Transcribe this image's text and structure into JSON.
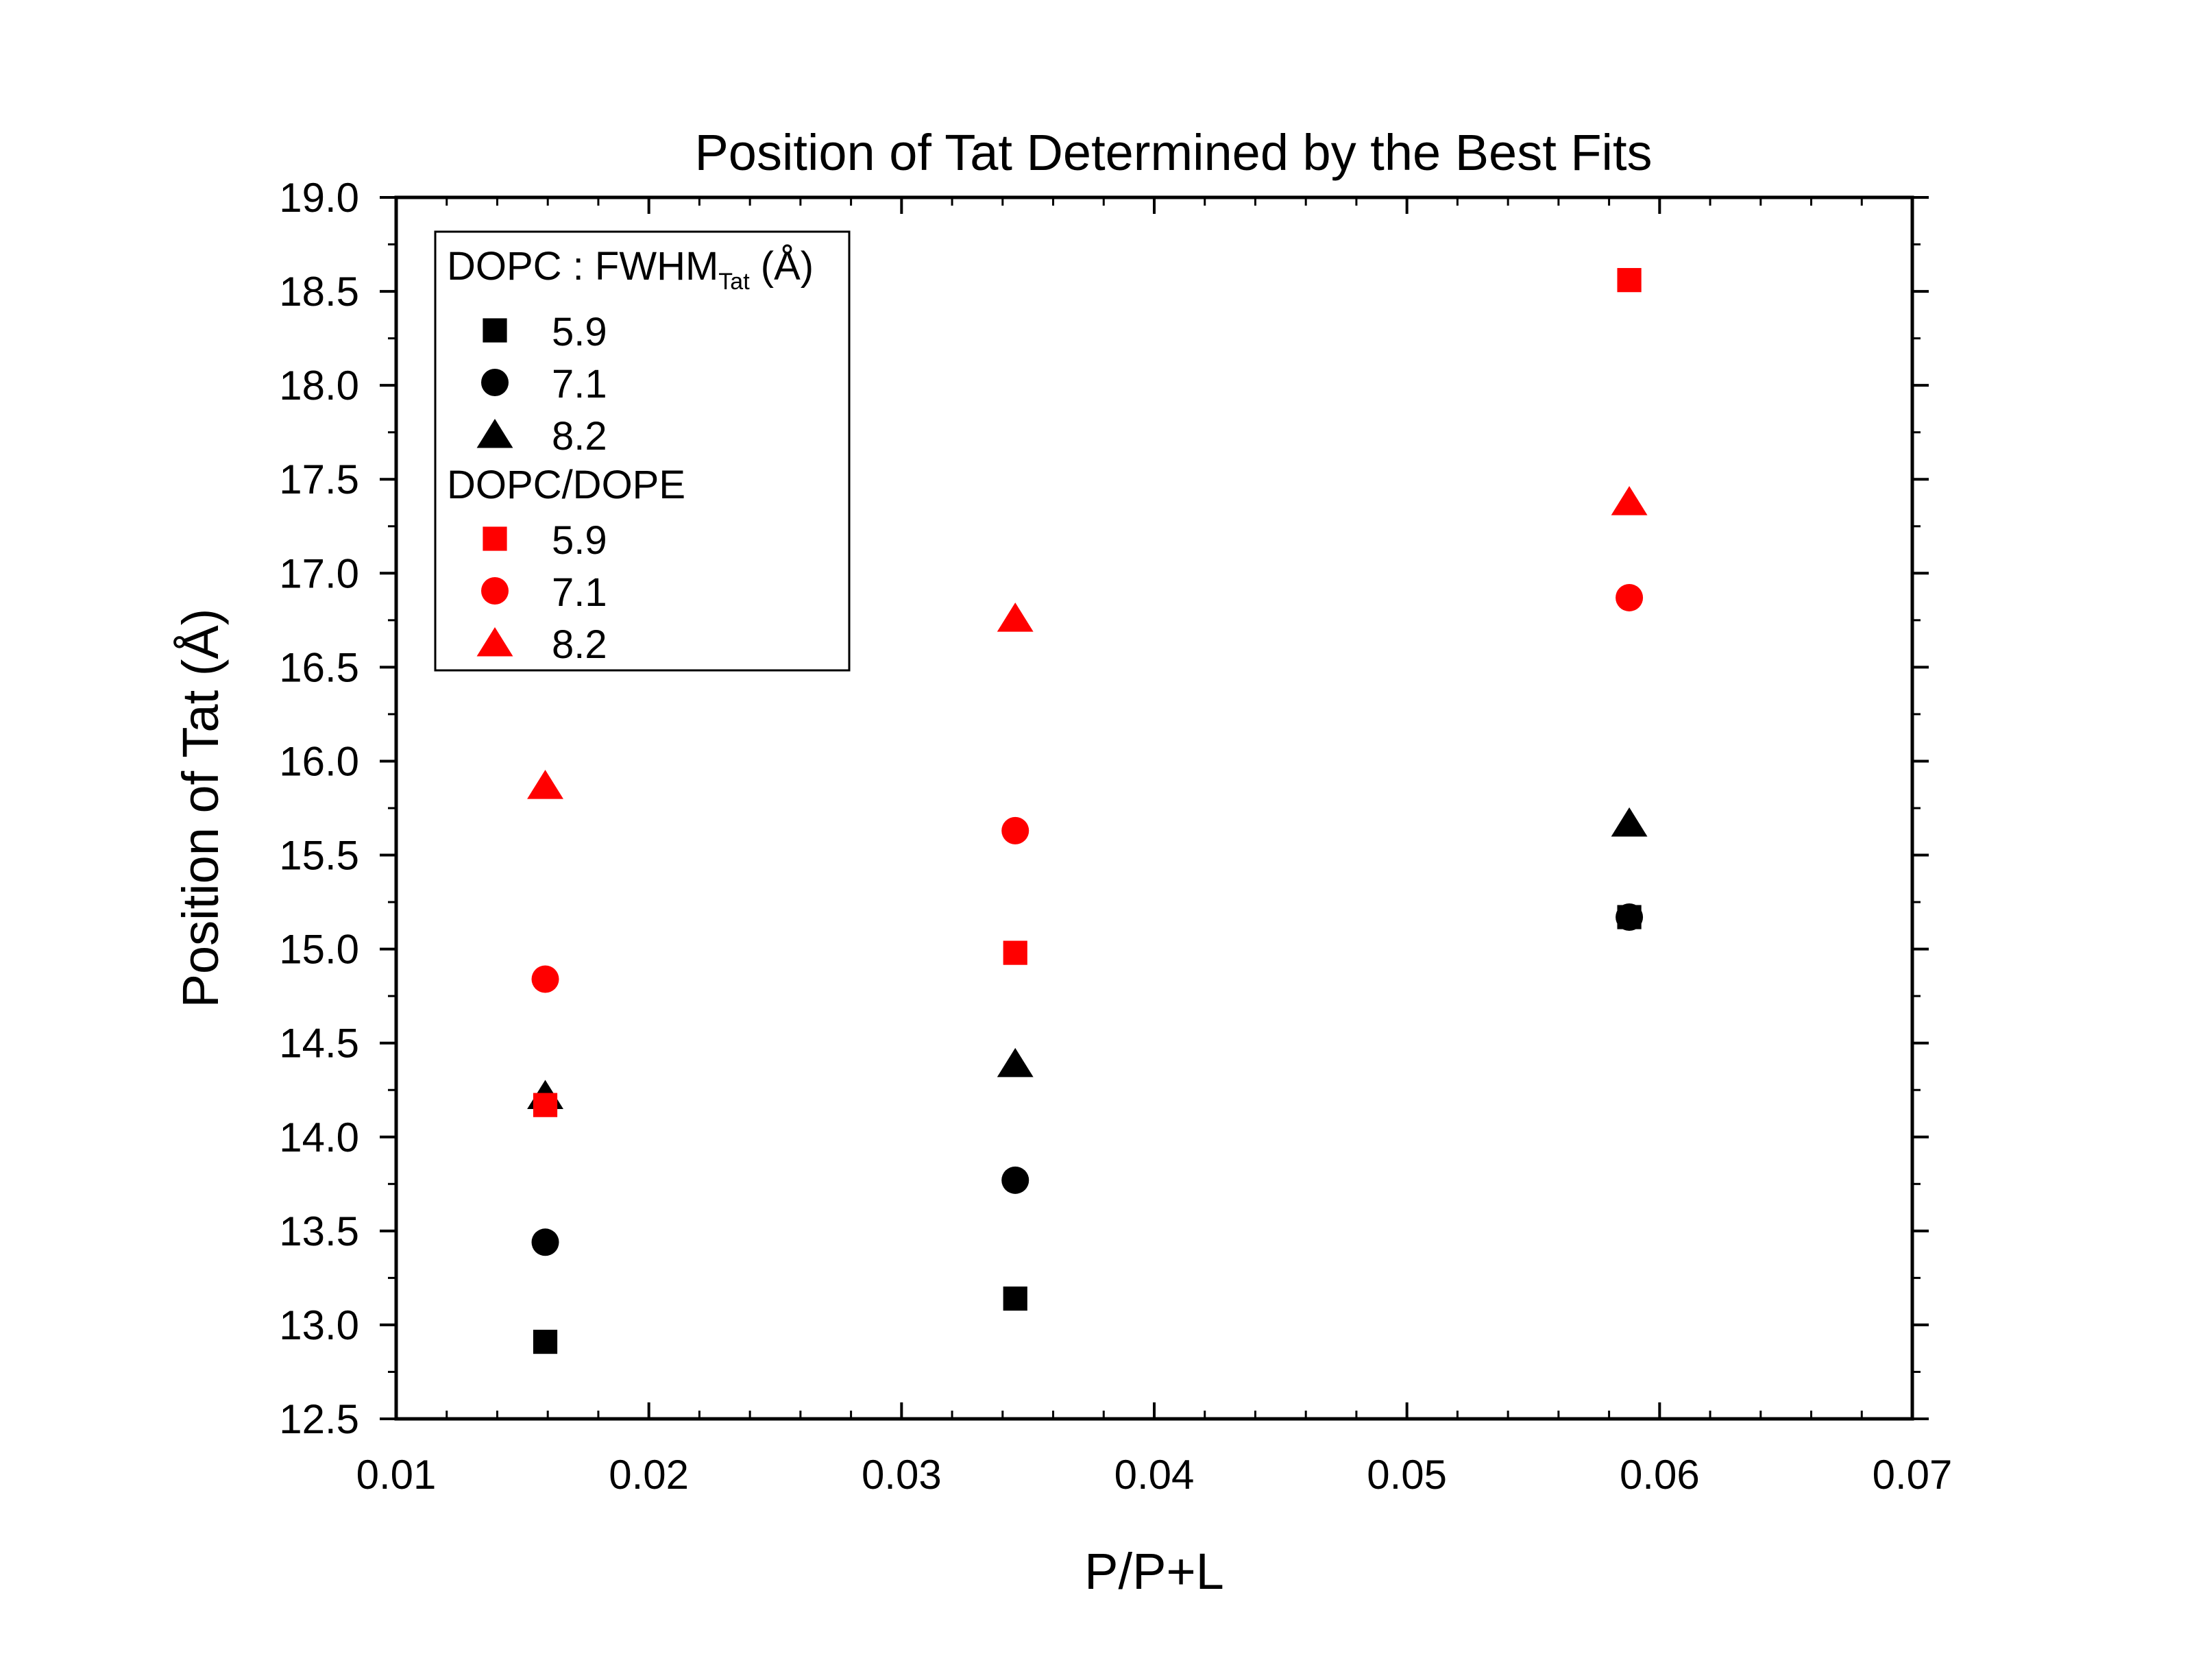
{
  "chart_data": {
    "type": "scatter",
    "title": "Position of Tat Determined by the Best Fits",
    "xlabel": "P/P+L",
    "ylabel": "Position of Tat (Å)",
    "xlim": [
      0.01,
      0.07
    ],
    "ylim": [
      12.5,
      19.0
    ],
    "x_ticks": [
      "0.01",
      "0.02",
      "0.03",
      "0.04",
      "0.05",
      "0.06",
      "0.07"
    ],
    "y_ticks": [
      "12.5",
      "13.0",
      "13.5",
      "14.0",
      "14.5",
      "15.0",
      "15.5",
      "16.0",
      "16.5",
      "17.0",
      "17.5",
      "18.0",
      "18.5",
      "19.0"
    ],
    "grid": false,
    "legend_position": "top-left",
    "legend": {
      "group1_title_main": "DOPC : FWHM",
      "group1_title_sub": "Tat",
      "group1_title_tail": " (Å)",
      "group2_title": "DOPC/DOPE"
    },
    "groups": [
      {
        "color": "#000000",
        "series": [
          {
            "name": "5.9",
            "marker": "square",
            "points": [
              [
                0.0159,
                12.91
              ],
              [
                0.0345,
                13.14
              ],
              [
                0.0588,
                15.17
              ]
            ]
          },
          {
            "name": "7.1",
            "marker": "circle",
            "points": [
              [
                0.0159,
                13.44
              ],
              [
                0.0345,
                13.77
              ],
              [
                0.0588,
                15.17
              ]
            ]
          },
          {
            "name": "8.2",
            "marker": "triangle",
            "points": [
              [
                0.0159,
                14.22
              ],
              [
                0.0345,
                14.39
              ],
              [
                0.0588,
                15.67
              ]
            ]
          }
        ]
      },
      {
        "color": "#ff0000",
        "series": [
          {
            "name": "5.9",
            "marker": "square",
            "points": [
              [
                0.0159,
                14.17
              ],
              [
                0.0345,
                14.98
              ],
              [
                0.0588,
                18.56
              ]
            ]
          },
          {
            "name": "7.1",
            "marker": "circle",
            "points": [
              [
                0.0159,
                14.84
              ],
              [
                0.0345,
                15.63
              ],
              [
                0.0588,
                16.87
              ]
            ]
          },
          {
            "name": "8.2",
            "marker": "triangle",
            "points": [
              [
                0.0159,
                15.87
              ],
              [
                0.0345,
                16.76
              ],
              [
                0.0588,
                17.38
              ]
            ]
          }
        ]
      }
    ]
  }
}
